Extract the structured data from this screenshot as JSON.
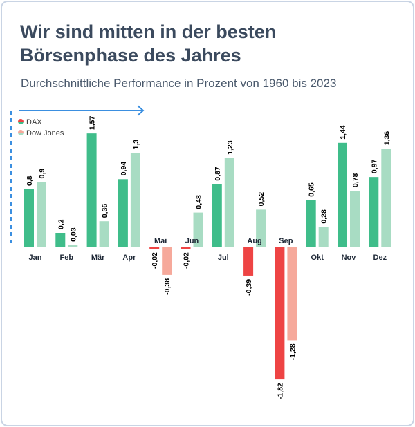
{
  "title": "Wir sind mitten in der besten Börsenphase des Jahres",
  "subtitle": "Durchschnittliche Performance in Prozent von 1960 bis 2023",
  "colors": {
    "dax_pos": "#3fbd8a",
    "dax_neg": "#ee4444",
    "dow_pos": "#a8dcc3",
    "dow_neg": "#f6a99b",
    "accent": "#3b8fe0"
  },
  "chart_data": {
    "type": "bar",
    "categories": [
      "Jan",
      "Feb",
      "Mär",
      "Apr",
      "Mai",
      "Jun",
      "Jul",
      "Aug",
      "Sep",
      "Okt",
      "Nov",
      "Dez"
    ],
    "series": [
      {
        "name": "DAX",
        "values": [
          0.8,
          0.2,
          1.57,
          0.94,
          -0.02,
          -0.02,
          0.87,
          -0.39,
          -1.82,
          0.65,
          1.44,
          0.97
        ]
      },
      {
        "name": "Dow Jones",
        "values": [
          0.9,
          0.03,
          0.36,
          1.3,
          -0.38,
          0.48,
          1.23,
          0.52,
          -1.28,
          0.28,
          0.78,
          1.36
        ]
      }
    ],
    "value_labels": [
      [
        "0,8",
        "0,2",
        "1,57",
        "0,94",
        "-0,02",
        "-0,02",
        "0,87",
        "-0,39",
        "-1,82",
        "0,65",
        "1,44",
        "0,97"
      ],
      [
        "0,9",
        "0,03",
        "0,36",
        "1,3",
        "-0,38",
        "0,48",
        "1,23",
        "0,52",
        "-1,28",
        "0,28",
        "0,78",
        "1,36"
      ]
    ],
    "ylim": [
      -1.85,
      1.9
    ],
    "grid": false,
    "legend": "top-left"
  }
}
